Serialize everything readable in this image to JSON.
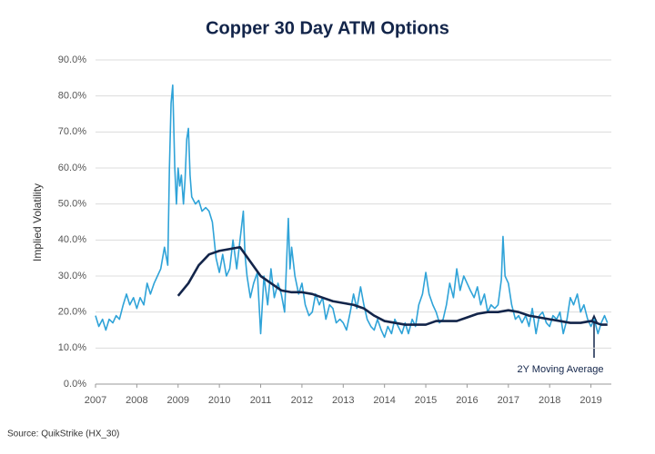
{
  "chart_data": {
    "type": "line",
    "title": "Copper 30 Day ATM Options",
    "y_label": "Implied Volatility",
    "source": "Source: QuikStrike (HX_30)",
    "annotation": "2Y Moving Average",
    "xlim": [
      2007,
      2019.45
    ],
    "xticks": [
      2007,
      2008,
      2009,
      2010,
      2011,
      2012,
      2013,
      2014,
      2015,
      2016,
      2017,
      2018,
      2019
    ],
    "ylim": [
      0,
      90
    ],
    "yticks": [
      {
        "value": 0,
        "label": "0.0%"
      },
      {
        "value": 10,
        "label": "10.0%"
      },
      {
        "value": 20,
        "label": "20.0%"
      },
      {
        "value": 30,
        "label": "30.0%"
      },
      {
        "value": 40,
        "label": "40.0%"
      },
      {
        "value": 50,
        "label": "50.0%"
      },
      {
        "value": 60,
        "label": "60.0%"
      },
      {
        "value": 70,
        "label": "70.0%"
      },
      {
        "value": 80,
        "label": "80.0%"
      },
      {
        "value": 90,
        "label": "90.0%"
      }
    ],
    "grid": true,
    "series": [
      {
        "name": "Implied Volatility",
        "color": "#2fa3d8",
        "x": [
          2007.0,
          2007.08,
          2007.17,
          2007.25,
          2007.33,
          2007.42,
          2007.5,
          2007.58,
          2007.67,
          2007.75,
          2007.83,
          2007.92,
          2008.0,
          2008.08,
          2008.17,
          2008.25,
          2008.33,
          2008.42,
          2008.5,
          2008.58,
          2008.67,
          2008.75,
          2008.79,
          2008.83,
          2008.87,
          2008.92,
          2008.96,
          2009.0,
          2009.04,
          2009.08,
          2009.13,
          2009.17,
          2009.21,
          2009.25,
          2009.29,
          2009.33,
          2009.42,
          2009.5,
          2009.58,
          2009.67,
          2009.75,
          2009.83,
          2009.92,
          2010.0,
          2010.08,
          2010.17,
          2010.25,
          2010.33,
          2010.42,
          2010.5,
          2010.58,
          2010.62,
          2010.67,
          2010.75,
          2010.83,
          2010.92,
          2011.0,
          2011.08,
          2011.17,
          2011.25,
          2011.33,
          2011.42,
          2011.5,
          2011.58,
          2011.67,
          2011.71,
          2011.75,
          2011.83,
          2011.92,
          2012.0,
          2012.08,
          2012.17,
          2012.25,
          2012.33,
          2012.42,
          2012.5,
          2012.58,
          2012.67,
          2012.75,
          2012.83,
          2012.92,
          2013.0,
          2013.08,
          2013.17,
          2013.25,
          2013.33,
          2013.42,
          2013.5,
          2013.58,
          2013.67,
          2013.75,
          2013.83,
          2013.92,
          2014.0,
          2014.08,
          2014.17,
          2014.25,
          2014.33,
          2014.42,
          2014.5,
          2014.58,
          2014.67,
          2014.75,
          2014.83,
          2014.92,
          2015.0,
          2015.08,
          2015.17,
          2015.25,
          2015.33,
          2015.42,
          2015.5,
          2015.58,
          2015.67,
          2015.75,
          2015.83,
          2015.92,
          2016.0,
          2016.08,
          2016.17,
          2016.25,
          2016.33,
          2016.42,
          2016.5,
          2016.58,
          2016.67,
          2016.75,
          2016.83,
          2016.87,
          2016.92,
          2017.0,
          2017.08,
          2017.17,
          2017.25,
          2017.33,
          2017.42,
          2017.5,
          2017.58,
          2017.67,
          2017.75,
          2017.83,
          2017.92,
          2018.0,
          2018.08,
          2018.17,
          2018.25,
          2018.33,
          2018.42,
          2018.5,
          2018.58,
          2018.67,
          2018.75,
          2018.83,
          2018.92,
          2019.0,
          2019.08,
          2019.17,
          2019.25,
          2019.33,
          2019.4
        ],
        "values": [
          19,
          16,
          18,
          15,
          18,
          17,
          19,
          18,
          22,
          25,
          22,
          24,
          21,
          24,
          22,
          28,
          25,
          28,
          30,
          32,
          38,
          33,
          60,
          78,
          83,
          60,
          50,
          60,
          55,
          58,
          50,
          57,
          68,
          71,
          58,
          52,
          50,
          51,
          48,
          49,
          48,
          45,
          35,
          31,
          36,
          30,
          32,
          40,
          32,
          40,
          48,
          36,
          30,
          24,
          28,
          31,
          14,
          30,
          22,
          32,
          24,
          28,
          25,
          20,
          46,
          32,
          38,
          30,
          25,
          28,
          22,
          19,
          20,
          25,
          22,
          24,
          18,
          22,
          21,
          17,
          18,
          17,
          15,
          20,
          25,
          21,
          27,
          22,
          18,
          16,
          15,
          18,
          15,
          13,
          16,
          14,
          18,
          16,
          14,
          17,
          14,
          18,
          16,
          22,
          25,
          31,
          25,
          22,
          20,
          17,
          18,
          22,
          28,
          24,
          32,
          26,
          30,
          28,
          26,
          24,
          27,
          22,
          25,
          20,
          22,
          21,
          22,
          29,
          41,
          30,
          28,
          22,
          18,
          19,
          17,
          19,
          16,
          21,
          14,
          19,
          20,
          17,
          16,
          19,
          18,
          20,
          14,
          18,
          24,
          22,
          25,
          20,
          22,
          18,
          16,
          18,
          14,
          17,
          19,
          17
        ]
      },
      {
        "name": "2Y Moving Average",
        "color": "#13254a",
        "x": [
          2009.0,
          2009.25,
          2009.5,
          2009.75,
          2010.0,
          2010.25,
          2010.5,
          2010.75,
          2011.0,
          2011.25,
          2011.5,
          2011.75,
          2012.0,
          2012.25,
          2012.5,
          2012.75,
          2013.0,
          2013.25,
          2013.5,
          2013.75,
          2014.0,
          2014.25,
          2014.5,
          2014.75,
          2015.0,
          2015.25,
          2015.5,
          2015.75,
          2016.0,
          2016.25,
          2016.5,
          2016.75,
          2017.0,
          2017.25,
          2017.5,
          2017.75,
          2018.0,
          2018.25,
          2018.5,
          2018.75,
          2019.0,
          2019.25,
          2019.4
        ],
        "values": [
          24.5,
          28,
          33,
          36,
          37,
          37.5,
          38,
          34,
          30,
          28,
          26,
          25.5,
          25.5,
          25,
          24,
          23,
          22.5,
          22,
          21,
          19,
          17.5,
          17,
          16.5,
          16.5,
          16.5,
          17.5,
          17.5,
          17.5,
          18.5,
          19.5,
          20,
          20,
          20.5,
          20,
          19,
          18.5,
          18,
          17.5,
          17,
          17,
          17.5,
          16.5,
          16.5
        ]
      }
    ]
  }
}
